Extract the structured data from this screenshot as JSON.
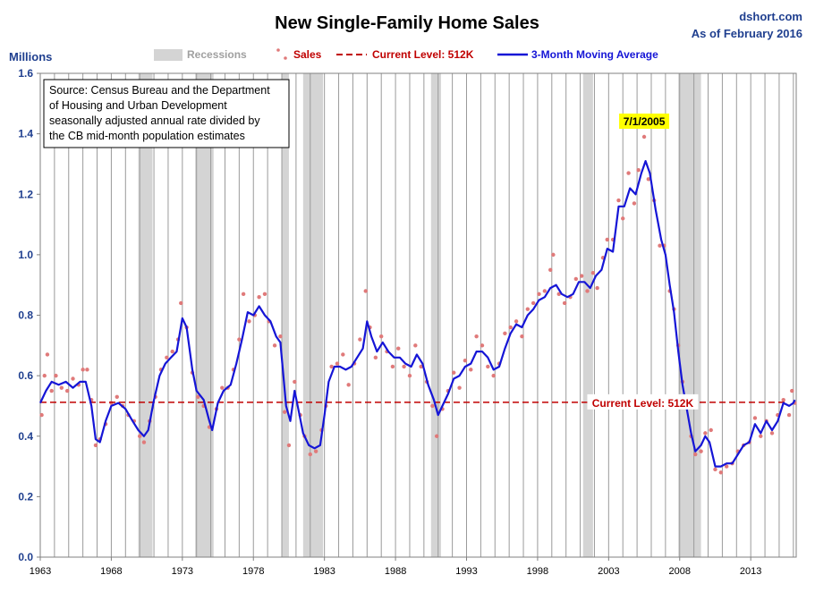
{
  "header": {
    "title": "New Single-Family Home Sales",
    "source_site": "dshort.com",
    "as_of": "As of February 2016"
  },
  "chart_data": {
    "type": "line",
    "title": "New Single-Family Home Sales",
    "ylabel": "Millions",
    "xlabel": "",
    "ylim": [
      0,
      1.6
    ],
    "xlim": [
      1963.0,
      2016.2
    ],
    "y_ticks": [
      0.0,
      0.2,
      0.4,
      0.6,
      0.8,
      1.0,
      1.2,
      1.4,
      1.6
    ],
    "y_tick_labels": [
      "0.0",
      "0.2",
      "0.4",
      "0.6",
      "0.8",
      "1.0",
      "1.2",
      "1.4",
      "1.6"
    ],
    "x_tick_labels": [
      "1963",
      "1968",
      "1973",
      "1978",
      "1983",
      "1988",
      "1993",
      "1998",
      "2003",
      "2008",
      "2013"
    ],
    "grid": "vertical yearly",
    "legend_position": "top",
    "legend": {
      "recessions": "Recessions",
      "sales": "Sales",
      "current_level": "Current Level: 512K",
      "moving_average": "3-Month Moving Average"
    },
    "colors": {
      "sales": "#e07a7a",
      "moving_average": "#1515d6",
      "current_level": "#c00000",
      "recession": "#d4d4d4",
      "grid": "#9a9a9a",
      "peak_highlight": "#ffff00"
    },
    "source_note": {
      "line1": "Source: Census Bureau and the Department",
      "line2": "of Housing and Urban Development",
      "line3": "seasonally adjusted annual rate divided by",
      "line4": "the CB mid-month population estimates"
    },
    "annotations": {
      "peak_label": "7/1/2005",
      "peak_x": 2005.5,
      "peak_y": 1.39,
      "current_label": "Current Level: 512K",
      "current_value": 0.512
    },
    "recessions": [
      [
        1969.9,
        1970.9
      ],
      [
        1973.9,
        1975.2
      ],
      [
        1980.0,
        1980.5
      ],
      [
        1981.5,
        1982.9
      ],
      [
        1990.5,
        1991.2
      ],
      [
        2001.2,
        2001.9
      ],
      [
        2007.9,
        2009.5
      ]
    ],
    "series": [
      {
        "name": "3-Month Moving Average",
        "points": [
          [
            1963.0,
            0.51
          ],
          [
            1963.4,
            0.55
          ],
          [
            1963.8,
            0.58
          ],
          [
            1964.3,
            0.57
          ],
          [
            1964.8,
            0.58
          ],
          [
            1965.3,
            0.56
          ],
          [
            1965.8,
            0.58
          ],
          [
            1966.2,
            0.58
          ],
          [
            1966.6,
            0.5
          ],
          [
            1966.9,
            0.39
          ],
          [
            1967.2,
            0.38
          ],
          [
            1967.6,
            0.45
          ],
          [
            1968.0,
            0.5
          ],
          [
            1968.5,
            0.51
          ],
          [
            1969.0,
            0.49
          ],
          [
            1969.5,
            0.45
          ],
          [
            1969.9,
            0.42
          ],
          [
            1970.3,
            0.4
          ],
          [
            1970.6,
            0.42
          ],
          [
            1971.0,
            0.52
          ],
          [
            1971.4,
            0.6
          ],
          [
            1971.8,
            0.64
          ],
          [
            1972.2,
            0.66
          ],
          [
            1972.6,
            0.68
          ],
          [
            1973.0,
            0.79
          ],
          [
            1973.3,
            0.76
          ],
          [
            1973.7,
            0.62
          ],
          [
            1974.0,
            0.55
          ],
          [
            1974.5,
            0.52
          ],
          [
            1974.9,
            0.45
          ],
          [
            1975.1,
            0.42
          ],
          [
            1975.5,
            0.51
          ],
          [
            1975.9,
            0.55
          ],
          [
            1976.4,
            0.57
          ],
          [
            1976.8,
            0.64
          ],
          [
            1977.2,
            0.72
          ],
          [
            1977.6,
            0.81
          ],
          [
            1978.0,
            0.8
          ],
          [
            1978.4,
            0.83
          ],
          [
            1978.8,
            0.8
          ],
          [
            1979.2,
            0.78
          ],
          [
            1979.6,
            0.73
          ],
          [
            1979.9,
            0.71
          ],
          [
            1980.3,
            0.5
          ],
          [
            1980.6,
            0.45
          ],
          [
            1980.9,
            0.55
          ],
          [
            1981.2,
            0.48
          ],
          [
            1981.5,
            0.41
          ],
          [
            1981.9,
            0.37
          ],
          [
            1982.3,
            0.36
          ],
          [
            1982.7,
            0.37
          ],
          [
            1983.0,
            0.47
          ],
          [
            1983.3,
            0.58
          ],
          [
            1983.7,
            0.63
          ],
          [
            1984.1,
            0.63
          ],
          [
            1984.5,
            0.62
          ],
          [
            1984.9,
            0.63
          ],
          [
            1985.3,
            0.66
          ],
          [
            1985.7,
            0.69
          ],
          [
            1986.0,
            0.78
          ],
          [
            1986.3,
            0.73
          ],
          [
            1986.7,
            0.68
          ],
          [
            1987.1,
            0.71
          ],
          [
            1987.5,
            0.68
          ],
          [
            1987.9,
            0.66
          ],
          [
            1988.3,
            0.66
          ],
          [
            1988.7,
            0.64
          ],
          [
            1989.1,
            0.63
          ],
          [
            1989.5,
            0.67
          ],
          [
            1989.9,
            0.64
          ],
          [
            1990.3,
            0.57
          ],
          [
            1990.7,
            0.52
          ],
          [
            1991.0,
            0.47
          ],
          [
            1991.3,
            0.5
          ],
          [
            1991.7,
            0.54
          ],
          [
            1992.1,
            0.59
          ],
          [
            1992.5,
            0.6
          ],
          [
            1992.9,
            0.63
          ],
          [
            1993.3,
            0.64
          ],
          [
            1993.7,
            0.68
          ],
          [
            1994.1,
            0.68
          ],
          [
            1994.5,
            0.66
          ],
          [
            1994.9,
            0.62
          ],
          [
            1995.3,
            0.63
          ],
          [
            1995.7,
            0.69
          ],
          [
            1996.1,
            0.74
          ],
          [
            1996.5,
            0.77
          ],
          [
            1996.9,
            0.76
          ],
          [
            1997.3,
            0.8
          ],
          [
            1997.7,
            0.82
          ],
          [
            1998.1,
            0.85
          ],
          [
            1998.5,
            0.86
          ],
          [
            1998.9,
            0.89
          ],
          [
            1999.3,
            0.9
          ],
          [
            1999.7,
            0.87
          ],
          [
            2000.1,
            0.86
          ],
          [
            2000.5,
            0.87
          ],
          [
            2000.9,
            0.91
          ],
          [
            2001.3,
            0.91
          ],
          [
            2001.7,
            0.89
          ],
          [
            2002.1,
            0.93
          ],
          [
            2002.5,
            0.95
          ],
          [
            2002.9,
            1.02
          ],
          [
            2003.3,
            1.01
          ],
          [
            2003.7,
            1.16
          ],
          [
            2004.1,
            1.16
          ],
          [
            2004.5,
            1.22
          ],
          [
            2004.9,
            1.2
          ],
          [
            2005.3,
            1.27
          ],
          [
            2005.6,
            1.31
          ],
          [
            2005.9,
            1.27
          ],
          [
            2006.3,
            1.15
          ],
          [
            2006.7,
            1.05
          ],
          [
            2007.0,
            1.0
          ],
          [
            2007.3,
            0.9
          ],
          [
            2007.6,
            0.81
          ],
          [
            2007.9,
            0.68
          ],
          [
            2008.2,
            0.57
          ],
          [
            2008.5,
            0.49
          ],
          [
            2008.8,
            0.41
          ],
          [
            2009.1,
            0.35
          ],
          [
            2009.5,
            0.37
          ],
          [
            2009.8,
            0.4
          ],
          [
            2010.1,
            0.38
          ],
          [
            2010.5,
            0.3
          ],
          [
            2010.9,
            0.3
          ],
          [
            2011.3,
            0.31
          ],
          [
            2011.7,
            0.31
          ],
          [
            2012.1,
            0.34
          ],
          [
            2012.5,
            0.37
          ],
          [
            2012.9,
            0.38
          ],
          [
            2013.3,
            0.44
          ],
          [
            2013.7,
            0.41
          ],
          [
            2014.1,
            0.45
          ],
          [
            2014.5,
            0.42
          ],
          [
            2014.9,
            0.45
          ],
          [
            2015.3,
            0.51
          ],
          [
            2015.7,
            0.5
          ],
          [
            2016.0,
            0.51
          ],
          [
            2016.1,
            0.52
          ]
        ]
      },
      {
        "name": "Sales",
        "points": [
          [
            1963.1,
            0.47
          ],
          [
            1963.3,
            0.6
          ],
          [
            1963.5,
            0.67
          ],
          [
            1963.8,
            0.55
          ],
          [
            1964.1,
            0.6
          ],
          [
            1964.5,
            0.56
          ],
          [
            1964.9,
            0.55
          ],
          [
            1965.3,
            0.59
          ],
          [
            1965.7,
            0.57
          ],
          [
            1966.0,
            0.62
          ],
          [
            1966.3,
            0.62
          ],
          [
            1966.6,
            0.52
          ],
          [
            1966.9,
            0.37
          ],
          [
            1967.2,
            0.39
          ],
          [
            1967.6,
            0.44
          ],
          [
            1968.0,
            0.51
          ],
          [
            1968.4,
            0.53
          ],
          [
            1968.8,
            0.5
          ],
          [
            1969.2,
            0.47
          ],
          [
            1969.6,
            0.45
          ],
          [
            1970.0,
            0.4
          ],
          [
            1970.3,
            0.38
          ],
          [
            1970.7,
            0.45
          ],
          [
            1971.1,
            0.53
          ],
          [
            1971.5,
            0.62
          ],
          [
            1971.9,
            0.66
          ],
          [
            1972.3,
            0.68
          ],
          [
            1972.7,
            0.72
          ],
          [
            1972.9,
            0.84
          ],
          [
            1973.3,
            0.76
          ],
          [
            1973.7,
            0.61
          ],
          [
            1974.1,
            0.53
          ],
          [
            1974.5,
            0.5
          ],
          [
            1974.9,
            0.43
          ],
          [
            1975.4,
            0.49
          ],
          [
            1975.8,
            0.56
          ],
          [
            1976.2,
            0.56
          ],
          [
            1976.6,
            0.62
          ],
          [
            1977.0,
            0.72
          ],
          [
            1977.3,
            0.87
          ],
          [
            1977.7,
            0.78
          ],
          [
            1978.1,
            0.8
          ],
          [
            1978.4,
            0.86
          ],
          [
            1978.8,
            0.87
          ],
          [
            1979.1,
            0.78
          ],
          [
            1979.5,
            0.7
          ],
          [
            1979.9,
            0.73
          ],
          [
            1980.2,
            0.48
          ],
          [
            1980.5,
            0.37
          ],
          [
            1980.9,
            0.58
          ],
          [
            1981.3,
            0.47
          ],
          [
            1981.6,
            0.4
          ],
          [
            1982.0,
            0.34
          ],
          [
            1982.4,
            0.35
          ],
          [
            1982.8,
            0.42
          ],
          [
            1983.1,
            0.5
          ],
          [
            1983.5,
            0.63
          ],
          [
            1983.9,
            0.64
          ],
          [
            1984.3,
            0.67
          ],
          [
            1984.7,
            0.57
          ],
          [
            1985.1,
            0.64
          ],
          [
            1985.5,
            0.72
          ],
          [
            1985.9,
            0.88
          ],
          [
            1986.2,
            0.76
          ],
          [
            1986.6,
            0.66
          ],
          [
            1987.0,
            0.73
          ],
          [
            1987.4,
            0.68
          ],
          [
            1987.8,
            0.63
          ],
          [
            1988.2,
            0.69
          ],
          [
            1988.6,
            0.63
          ],
          [
            1989.0,
            0.6
          ],
          [
            1989.4,
            0.7
          ],
          [
            1989.8,
            0.63
          ],
          [
            1990.2,
            0.58
          ],
          [
            1990.6,
            0.5
          ],
          [
            1990.9,
            0.4
          ],
          [
            1991.3,
            0.49
          ],
          [
            1991.7,
            0.55
          ],
          [
            1992.1,
            0.61
          ],
          [
            1992.5,
            0.56
          ],
          [
            1992.9,
            0.65
          ],
          [
            1993.3,
            0.62
          ],
          [
            1993.7,
            0.73
          ],
          [
            1994.1,
            0.7
          ],
          [
            1994.5,
            0.63
          ],
          [
            1994.9,
            0.6
          ],
          [
            1995.3,
            0.64
          ],
          [
            1995.7,
            0.74
          ],
          [
            1996.1,
            0.76
          ],
          [
            1996.5,
            0.78
          ],
          [
            1996.9,
            0.73
          ],
          [
            1997.3,
            0.82
          ],
          [
            1997.7,
            0.84
          ],
          [
            1998.1,
            0.87
          ],
          [
            1998.5,
            0.88
          ],
          [
            1998.9,
            0.95
          ],
          [
            1999.1,
            1.0
          ],
          [
            1999.5,
            0.87
          ],
          [
            1999.9,
            0.84
          ],
          [
            2000.3,
            0.86
          ],
          [
            2000.7,
            0.92
          ],
          [
            2001.1,
            0.93
          ],
          [
            2001.5,
            0.88
          ],
          [
            2001.9,
            0.94
          ],
          [
            2002.2,
            0.89
          ],
          [
            2002.6,
            0.99
          ],
          [
            2002.9,
            1.05
          ],
          [
            2003.3,
            1.05
          ],
          [
            2003.7,
            1.18
          ],
          [
            2004.0,
            1.12
          ],
          [
            2004.4,
            1.27
          ],
          [
            2004.8,
            1.17
          ],
          [
            2005.1,
            1.28
          ],
          [
            2005.5,
            1.39
          ],
          [
            2005.8,
            1.25
          ],
          [
            2006.2,
            1.18
          ],
          [
            2006.6,
            1.03
          ],
          [
            2006.9,
            1.03
          ],
          [
            2007.3,
            0.88
          ],
          [
            2007.6,
            0.82
          ],
          [
            2007.9,
            0.7
          ],
          [
            2008.2,
            0.58
          ],
          [
            2008.5,
            0.5
          ],
          [
            2008.8,
            0.4
          ],
          [
            2009.1,
            0.34
          ],
          [
            2009.5,
            0.35
          ],
          [
            2009.8,
            0.41
          ],
          [
            2010.2,
            0.42
          ],
          [
            2010.5,
            0.29
          ],
          [
            2010.9,
            0.28
          ],
          [
            2011.3,
            0.3
          ],
          [
            2011.7,
            0.31
          ],
          [
            2012.1,
            0.35
          ],
          [
            2012.5,
            0.37
          ],
          [
            2012.9,
            0.38
          ],
          [
            2013.3,
            0.46
          ],
          [
            2013.7,
            0.4
          ],
          [
            2014.1,
            0.45
          ],
          [
            2014.5,
            0.41
          ],
          [
            2014.9,
            0.47
          ],
          [
            2015.3,
            0.52
          ],
          [
            2015.7,
            0.47
          ],
          [
            2015.9,
            0.55
          ],
          [
            2016.1,
            0.51
          ]
        ]
      }
    ]
  }
}
